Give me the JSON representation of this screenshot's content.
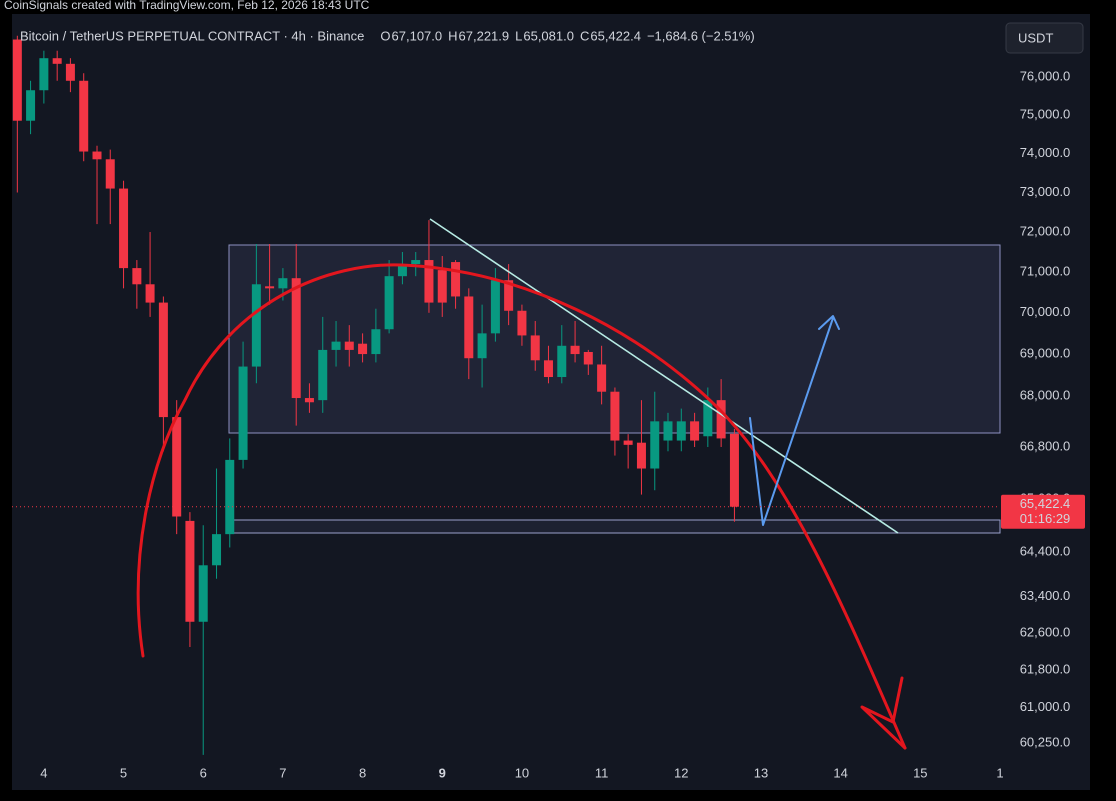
{
  "chart_data": {
    "type": "candlestick",
    "watermark": "CoinSignals created with TradingView.com, Feb 12, 2026 18:43 UTC",
    "title": "Bitcoin / TetherUS PERPETUAL CONTRACT · 4h · Binance",
    "ohlc_legend": [
      {
        "key": "O",
        "text": "67,107.0"
      },
      {
        "key": "H",
        "text": "67,221.9"
      },
      {
        "key": "L",
        "text": "65,081.0"
      },
      {
        "key": "C",
        "text": "65,422.4"
      }
    ],
    "change_label": "−1,684.6 (−2.51%)",
    "currency": "USDT",
    "last_price_label": "65,422.4",
    "countdown": "01:16:29",
    "up_color": "#089981",
    "down_color": "#f23645",
    "log": true,
    "grid": false,
    "x": [
      3.667,
      3.833,
      4,
      4.167,
      4.333,
      4.5,
      4.667,
      4.833,
      5,
      5.167,
      5.333,
      5.5,
      5.667,
      5.833,
      6,
      6.167,
      6.333,
      6.5,
      6.667,
      6.833,
      7,
      7.167,
      7.333,
      7.5,
      7.667,
      7.833,
      8,
      8.167,
      8.333,
      8.5,
      8.667,
      8.833,
      9,
      9.167,
      9.333,
      9.5,
      9.667,
      9.833,
      10,
      10.167,
      10.333,
      10.5,
      10.667,
      10.833,
      11,
      11.167,
      11.333,
      11.5,
      11.667,
      11.833,
      12,
      12.167,
      12.333,
      12.5,
      12.667
    ],
    "open": [
      77000,
      74850,
      75650,
      76500,
      76350,
      75900,
      74050,
      73850,
      73100,
      71100,
      70700,
      70250,
      67500,
      65100,
      62850,
      64100,
      64800,
      66500,
      68700,
      70650,
      70600,
      70850,
      67950,
      67900,
      69100,
      69300,
      69250,
      69000,
      69600,
      70900,
      71200,
      71300,
      71050,
      71250,
      70400,
      68900,
      69500,
      70800,
      70050,
      69450,
      68850,
      68450,
      69200,
      69050,
      68750,
      68100,
      66950,
      66900,
      66300,
      66950,
      66950,
      67400,
      67050,
      67900,
      67107.0
    ],
    "high": [
      77100,
      75900,
      76700,
      76700,
      76500,
      76100,
      74200,
      74100,
      73300,
      71300,
      72000,
      70400,
      67900,
      65300,
      65000,
      66300,
      67000,
      69300,
      71700,
      71700,
      71100,
      71700,
      68300,
      69900,
      69800,
      69700,
      69500,
      70100,
      71300,
      71500,
      71500,
      72300,
      71400,
      71300,
      70600,
      70200,
      71100,
      71200,
      70200,
      69800,
      69200,
      69700,
      69800,
      69100,
      69200,
      68200,
      67100,
      67900,
      68100,
      67600,
      67700,
      67600,
      68200,
      68400,
      67221.9
    ],
    "low": [
      73000,
      74500,
      75300,
      75900,
      75600,
      73800,
      72200,
      72200,
      70600,
      70100,
      69900,
      66700,
      64800,
      62300,
      60000,
      63800,
      64500,
      66300,
      68300,
      70200,
      70300,
      67300,
      67600,
      67600,
      68700,
      68700,
      68800,
      68800,
      69500,
      70700,
      70900,
      70000,
      69900,
      70100,
      68400,
      68200,
      69300,
      69700,
      69200,
      68600,
      68300,
      68300,
      68800,
      68500,
      67800,
      66600,
      66300,
      65700,
      65800,
      66700,
      66700,
      66800,
      66800,
      66800,
      65081.0
    ],
    "close": [
      74850,
      75650,
      76500,
      76350,
      75900,
      74050,
      73850,
      73100,
      71100,
      70700,
      70250,
      67500,
      65200,
      62850,
      64100,
      64800,
      66500,
      68700,
      70700,
      70600,
      70850,
      67950,
      67850,
      69100,
      69300,
      69100,
      69000,
      69600,
      70900,
      71200,
      71300,
      70250,
      70250,
      70400,
      68900,
      69500,
      70800,
      70050,
      69450,
      68850,
      68450,
      69200,
      69000,
      68750,
      68100,
      66950,
      66850,
      66300,
      67400,
      67400,
      67400,
      66950,
      67900,
      67000,
      65422.4
    ],
    "xlim": [
      3.6,
      16.0
    ],
    "xticks": [
      4,
      5,
      6,
      7,
      8,
      9,
      10,
      11,
      12,
      13,
      14,
      15,
      {
        "value": 16,
        "label": "1"
      }
    ],
    "xtick_bold": [
      9
    ],
    "ylim": [
      59850,
      77580
    ],
    "yticks": [
      {
        "value": 76000,
        "label": "76,000.0"
      },
      {
        "value": 75000,
        "label": "75,000.0"
      },
      {
        "value": 74000,
        "label": "74,000.0"
      },
      {
        "value": 73000,
        "label": "73,000.0"
      },
      {
        "value": 72000,
        "label": "72,000.0"
      },
      {
        "value": 71000,
        "label": "71,000.0"
      },
      {
        "value": 70000,
        "label": "70,000.0"
      },
      {
        "value": 69000,
        "label": "69,000.0"
      },
      {
        "value": 68000,
        "label": "68,000.0"
      },
      {
        "value": 66800,
        "label": "66,800.0"
      },
      {
        "value": 65600,
        "label": "65,600.0"
      },
      {
        "value": 64400,
        "label": "64,400.0"
      },
      {
        "value": 63400,
        "label": "63,400.0"
      },
      {
        "value": 62600,
        "label": "62,600.0"
      },
      {
        "value": 61800,
        "label": "61,800.0"
      },
      {
        "value": 61000,
        "label": "61,000.0"
      },
      {
        "value": 60250,
        "label": "60,250.0"
      }
    ]
  }
}
